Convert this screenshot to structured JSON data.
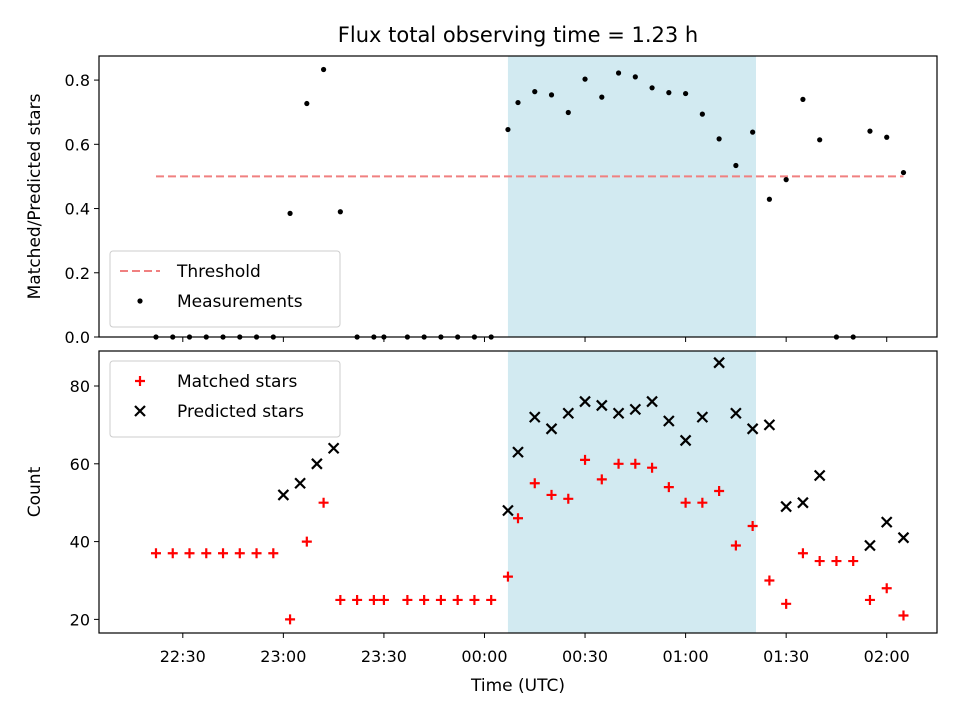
{
  "chart_data": {
    "title": "Flux total observing time = 1.23 h",
    "xlabel": "Time (UTC)",
    "x_unit": "minutes after 22:00 UTC",
    "xlim": [
      5,
      255
    ],
    "x_ticks": [
      {
        "value": 30,
        "label": "22:30"
      },
      {
        "value": 60,
        "label": "23:00"
      },
      {
        "value": 90,
        "label": "23:30"
      },
      {
        "value": 120,
        "label": "00:00"
      },
      {
        "value": 150,
        "label": "00:30"
      },
      {
        "value": 180,
        "label": "01:00"
      },
      {
        "value": 210,
        "label": "01:30"
      },
      {
        "value": 240,
        "label": "02:00"
      }
    ],
    "highlight_span": {
      "start": 127,
      "end": 201,
      "color": "#add8e6"
    },
    "x": [
      22,
      27,
      32,
      37,
      42,
      47,
      52,
      57,
      62,
      67,
      72,
      77,
      82,
      87,
      90,
      97,
      102,
      107,
      112,
      117,
      122,
      127,
      130,
      135,
      140,
      145,
      150,
      155,
      160,
      165,
      170,
      175,
      180,
      185,
      190,
      195,
      200,
      205,
      210,
      215,
      220,
      225,
      230,
      235,
      240,
      245
    ],
    "panels": [
      {
        "type": "scatter",
        "ylabel": "Matched/Predicted stars",
        "ylim": [
          0,
          0.875
        ],
        "y_ticks": [
          {
            "value": 0.0,
            "label": "0.0"
          },
          {
            "value": 0.2,
            "label": "0.2"
          },
          {
            "value": 0.4,
            "label": "0.4"
          },
          {
            "value": 0.6,
            "label": "0.6"
          },
          {
            "value": 0.8,
            "label": "0.8"
          }
        ],
        "threshold": {
          "name": "Threshold",
          "value": 0.5,
          "x_range": [
            22,
            245
          ],
          "color": "#f08080"
        },
        "series": [
          {
            "name": "Measurements",
            "marker": "dot",
            "color": "#000000",
            "values": [
              0,
              0,
              0,
              0,
              0,
              0,
              0,
              0,
              0.385,
              0.727,
              0.833,
              0.39,
              0,
              0,
              0,
              0,
              0,
              0,
              0,
              0,
              0,
              0.646,
              0.73,
              0.764,
              0.754,
              0.699,
              0.803,
              0.747,
              0.822,
              0.81,
              0.776,
              0.761,
              0.758,
              0.694,
              0.617,
              0.534,
              0.638,
              0.429,
              0.49,
              0.74,
              0.614,
              0,
              0,
              0.641,
              0.622,
              0.512
            ]
          }
        ],
        "legend": {
          "position": "lower-left",
          "entries": [
            "Threshold",
            "Measurements"
          ]
        }
      },
      {
        "type": "scatter",
        "ylabel": "Count",
        "ylim": [
          16.5,
          89
        ],
        "y_ticks": [
          {
            "value": 20,
            "label": "20"
          },
          {
            "value": 40,
            "label": "40"
          },
          {
            "value": 60,
            "label": "60"
          },
          {
            "value": 80,
            "label": "80"
          }
        ],
        "series": [
          {
            "name": "Matched stars",
            "marker": "plus",
            "color": "#ff0000",
            "values": [
              37,
              37,
              37,
              37,
              37,
              37,
              37,
              37,
              20,
              40,
              50,
              25,
              25,
              25,
              25,
              25,
              25,
              25,
              25,
              25,
              25,
              31,
              46,
              55,
              52,
              51,
              61,
              56,
              60,
              60,
              59,
              54,
              50,
              50,
              53,
              39,
              44,
              30,
              24,
              37,
              35,
              35,
              35,
              25,
              28,
              21
            ]
          },
          {
            "name": "Predicted stars",
            "marker": "x",
            "color": "#000000",
            "x": [
              60,
              65,
              70,
              75,
              127,
              130,
              135,
              140,
              145,
              150,
              155,
              160,
              165,
              170,
              175,
              180,
              185,
              190,
              195,
              200,
              205,
              210,
              215,
              220,
              235,
              240,
              245
            ],
            "values": [
              52,
              55,
              60,
              64,
              48,
              63,
              72,
              69,
              73,
              76,
              75,
              73,
              74,
              76,
              71,
              66,
              72,
              86,
              73,
              69,
              70,
              49,
              50,
              57,
              39,
              45,
              41
            ]
          }
        ],
        "legend": {
          "position": "upper-left",
          "entries": [
            "Matched stars",
            "Predicted stars"
          ]
        }
      }
    ]
  }
}
